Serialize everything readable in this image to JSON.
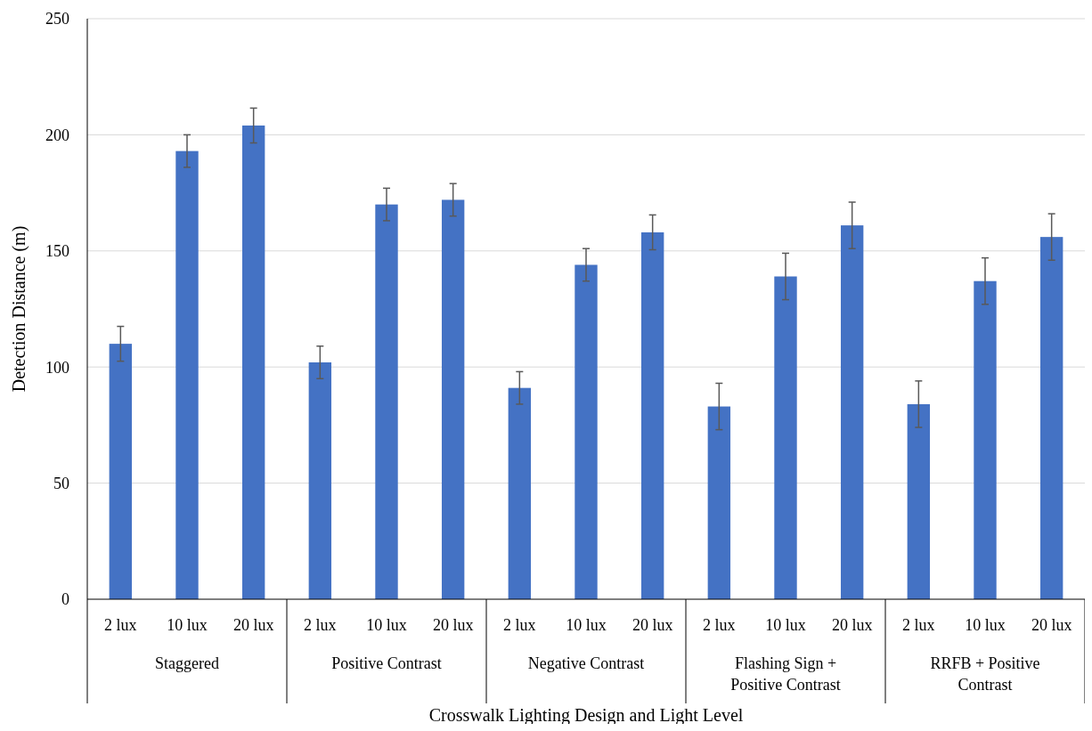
{
  "chart_data": {
    "type": "bar",
    "xlabel": "Crosswalk Lighting Design and Light Level",
    "ylabel": "Detection Distance (m)",
    "categories": [
      "2 lux",
      "10 lux",
      "20 lux",
      "2 lux",
      "10 lux",
      "20 lux",
      "2 lux",
      "10 lux",
      "20 lux",
      "2 lux",
      "10 lux",
      "20 lux",
      "2 lux",
      "10 lux",
      "20 lux"
    ],
    "values": [
      110,
      193,
      204,
      102,
      170,
      172,
      91,
      144,
      158,
      83,
      139,
      161,
      84,
      137,
      156
    ],
    "errors": [
      7.5,
      7,
      7.5,
      7,
      7,
      7,
      7,
      7,
      7.5,
      10,
      10,
      10,
      10,
      10,
      10
    ],
    "color": "#4472c4",
    "annotations": [
      "Staggered",
      "Positive Contrast",
      "Negative Contrast",
      "Flashing Sign + Positive Contrast",
      "RRFB + Positive Contrast"
    ],
    "ylim": [
      0,
      250
    ],
    "yticks": [
      0,
      50,
      100,
      150,
      200,
      250
    ],
    "grid": "y"
  }
}
